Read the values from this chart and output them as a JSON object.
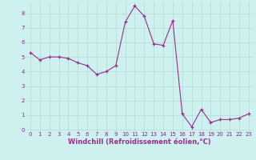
{
  "x": [
    0,
    1,
    2,
    3,
    4,
    5,
    6,
    7,
    8,
    9,
    10,
    11,
    12,
    13,
    14,
    15,
    16,
    17,
    18,
    19,
    20,
    21,
    22,
    23
  ],
  "y": [
    5.3,
    4.8,
    5.0,
    5.0,
    4.9,
    4.6,
    4.4,
    3.8,
    4.0,
    4.4,
    7.4,
    8.5,
    7.8,
    5.9,
    5.8,
    7.5,
    1.1,
    0.2,
    1.4,
    0.5,
    0.7,
    0.7,
    0.8,
    1.1
  ],
  "line_color": "#9b2d8e",
  "marker": "+",
  "marker_size": 3,
  "bg_color": "#cef0ee",
  "grid_color": "#b0ddd9",
  "xlabel": "Windchill (Refroidissement éolien,°C)",
  "xlim_min": -0.5,
  "xlim_max": 23.5,
  "ylim_min": -0.1,
  "ylim_max": 8.8,
  "yticks": [
    0,
    1,
    2,
    3,
    4,
    5,
    6,
    7,
    8
  ],
  "xticks": [
    0,
    1,
    2,
    3,
    4,
    5,
    6,
    7,
    8,
    9,
    10,
    11,
    12,
    13,
    14,
    15,
    16,
    17,
    18,
    19,
    20,
    21,
    22,
    23
  ],
  "tick_fontsize": 5.0,
  "xlabel_fontsize": 6.0
}
